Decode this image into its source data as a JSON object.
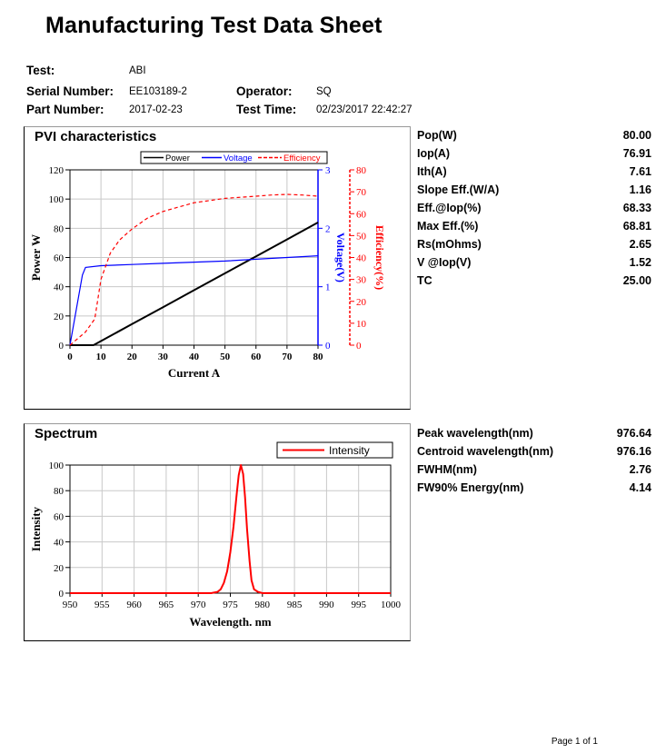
{
  "doc_title": "Manufacturing Test Data Sheet",
  "header": {
    "test_label": "Test:",
    "test_value": "ABI",
    "serial_label": "Serial Number:",
    "serial_value": "EE103189-2",
    "part_label": "Part Number:",
    "part_value": "2017-02-23",
    "operator_label": "Operator:",
    "operator_value": "SQ",
    "time_label": "Test Time:",
    "time_value": "02/23/2017 22:42:27"
  },
  "pvi": {
    "panel_title": "PVI characteristics",
    "legend": [
      "Power",
      "Voltage",
      "Efficiency"
    ],
    "params": [
      {
        "label": "Pop(W)",
        "value": "80.00"
      },
      {
        "label": "Iop(A)",
        "value": "76.91"
      },
      {
        "label": "Ith(A)",
        "value": "7.61"
      },
      {
        "label": "Slope Eff.(W/A)",
        "value": "1.16"
      },
      {
        "label": "Eff.@Iop(%)",
        "value": "68.33"
      },
      {
        "label": "Max Eff.(%)",
        "value": "68.81"
      },
      {
        "label": "Rs(mOhms)",
        "value": "2.65"
      },
      {
        "label": "V @Iop(V)",
        "value": "1.52"
      },
      {
        "label": "TC",
        "value": "25.00"
      }
    ]
  },
  "spectrum": {
    "panel_title": "Spectrum",
    "legend": [
      "Intensity"
    ],
    "params": [
      {
        "label": "Peak wavelength(nm)",
        "value": "976.64"
      },
      {
        "label": "Centroid wavelength(nm)",
        "value": "976.16"
      },
      {
        "label": "FWHM(nm)",
        "value": "2.76"
      },
      {
        "label": "FW90% Energy(nm)",
        "value": "4.14"
      }
    ]
  },
  "footer": "Page 1 of 1",
  "chart_data": [
    {
      "type": "line",
      "title": "",
      "xlabel": "Current A",
      "ylabel": "Power W",
      "y2label": "Voltage(V)",
      "y3label": "Efficiency(%)",
      "xlim": [
        0,
        80
      ],
      "ylim": [
        0,
        120
      ],
      "y2lim": [
        0,
        3
      ],
      "y3lim": [
        0,
        80
      ],
      "x_ticks": [
        "0",
        "10",
        "20",
        "30",
        "40",
        "50",
        "60",
        "70",
        "80"
      ],
      "y_ticks": [
        "0",
        "20",
        "40",
        "60",
        "80",
        "100",
        "120"
      ],
      "y2_ticks": [
        "0",
        "1",
        "2",
        "3"
      ],
      "y3_ticks": [
        "0",
        "10",
        "20",
        "30",
        "40",
        "50",
        "60",
        "70",
        "80"
      ],
      "grid": true,
      "legend_position": "top",
      "colors": {
        "Power": "#000000",
        "Voltage": "#0000ff",
        "Efficiency": "#ff0000"
      },
      "series": [
        {
          "name": "Power",
          "axis": "y",
          "x": [
            0,
            7.6,
            10,
            20,
            30,
            40,
            50,
            60,
            70,
            80
          ],
          "y": [
            0,
            0,
            2.8,
            14.4,
            26,
            37.6,
            49.2,
            60.8,
            72.4,
            84
          ]
        },
        {
          "name": "Voltage",
          "axis": "y2",
          "x": [
            0,
            4,
            5,
            10,
            20,
            30,
            40,
            50,
            60,
            70,
            80
          ],
          "y": [
            0,
            1.2,
            1.33,
            1.36,
            1.38,
            1.4,
            1.42,
            1.44,
            1.47,
            1.5,
            1.53
          ]
        },
        {
          "name": "Efficiency",
          "axis": "y3",
          "x": [
            0,
            5,
            8,
            10,
            13,
            16,
            20,
            25,
            30,
            35,
            40,
            45,
            50,
            55,
            60,
            65,
            70,
            75,
            80
          ],
          "y": [
            0,
            6,
            12,
            30,
            42,
            48,
            53,
            58,
            61,
            63,
            65,
            66,
            67,
            67.5,
            68,
            68.5,
            68.8,
            68.5,
            68
          ]
        }
      ]
    },
    {
      "type": "line",
      "title": "",
      "xlabel": "Wavelength. nm",
      "ylabel": "Intensity",
      "xlim": [
        950,
        1000
      ],
      "ylim": [
        0,
        100
      ],
      "x_ticks": [
        "950",
        "955",
        "960",
        "965",
        "970",
        "975",
        "980",
        "985",
        "990",
        "995",
        "1000"
      ],
      "y_ticks": [
        "0",
        "20",
        "40",
        "60",
        "80",
        "100"
      ],
      "grid": true,
      "legend_position": "top-right",
      "colors": {
        "Intensity": "#ff0000"
      },
      "series": [
        {
          "name": "Intensity",
          "x": [
            950,
            972,
            973,
            973.5,
            974,
            974.5,
            975,
            975.5,
            976,
            976.3,
            976.64,
            977,
            977.3,
            977.6,
            978,
            978.3,
            978.7,
            979.3,
            980,
            1000
          ],
          "y": [
            0,
            0,
            1,
            3,
            8,
            17,
            32,
            52,
            78,
            92,
            100,
            93,
            75,
            50,
            25,
            10,
            3,
            1,
            0,
            0
          ]
        }
      ]
    }
  ]
}
